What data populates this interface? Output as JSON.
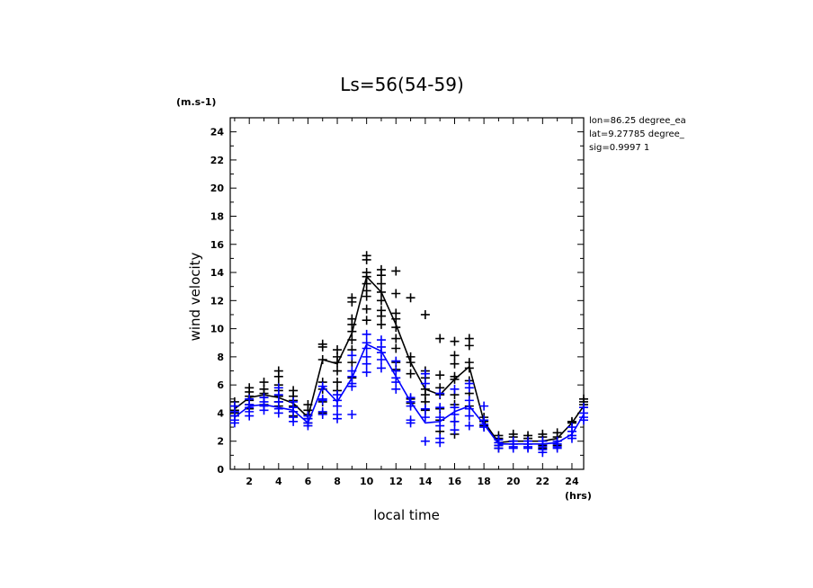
{
  "chart_data": {
    "type": "line",
    "title": "Ls=56(54-59)",
    "xlabel": "local time",
    "ylabel": "wind velocity",
    "x_unit": "(hrs)",
    "y_unit": "(m.s-1)",
    "xlim": [
      0.7,
      24.8
    ],
    "ylim": [
      0,
      25
    ],
    "x_ticks": [
      2,
      4,
      6,
      8,
      10,
      12,
      14,
      16,
      18,
      20,
      22,
      24
    ],
    "y_ticks": [
      0,
      2,
      4,
      6,
      8,
      10,
      12,
      14,
      16,
      18,
      20,
      22,
      24
    ],
    "annotations": [
      "lon=86.25 degree_ea",
      "lat=9.27785 degree_",
      "sig=0.9997 1"
    ],
    "x": [
      1,
      2,
      3,
      4,
      5,
      6,
      7,
      8,
      9,
      10,
      11,
      12,
      13,
      14,
      15,
      16,
      17,
      18,
      19,
      20,
      21,
      22,
      23,
      24,
      24.8
    ],
    "series": [
      {
        "color": "#000000",
        "mean": [
          4.3,
          5.1,
          5.3,
          5.1,
          4.7,
          3.7,
          7.8,
          7.5,
          9.7,
          13.7,
          12.6,
          10.3,
          7.6,
          5.7,
          5.3,
          6.4,
          7.3,
          3.4,
          1.9,
          2.0,
          2.0,
          2.0,
          2.2,
          3.3,
          4.5
        ],
        "scatter": [
          [
            4.8,
            4.5,
            4.2,
            4.0,
            3.8
          ],
          [
            5.8,
            5.5,
            5.2,
            4.9,
            4.6,
            4.3
          ],
          [
            6.2,
            5.7,
            5.4,
            5.1,
            4.6
          ],
          [
            7.0,
            6.6,
            6.0,
            5.6,
            5.2,
            4.8,
            4.5
          ],
          [
            5.6,
            5.2,
            4.9,
            4.5,
            4.1,
            3.8
          ],
          [
            4.6,
            4.2,
            3.9,
            3.6,
            3.3
          ],
          [
            8.9,
            8.7,
            7.8,
            6.2,
            5.7,
            4.8,
            4.0
          ],
          [
            8.5,
            8.0,
            7.6,
            7.0,
            6.2,
            5.6
          ],
          [
            12.2,
            11.9,
            10.7,
            10.3,
            9.8,
            9.2,
            8.5,
            7.6,
            6.5
          ],
          [
            15.2,
            14.9,
            14.0,
            13.7,
            13.2,
            12.7,
            12.3,
            11.4,
            10.6
          ],
          [
            14.2,
            13.8,
            13.2,
            12.6,
            12.0,
            11.3,
            10.9,
            10.3
          ],
          [
            14.1,
            12.5,
            11.1,
            10.7,
            10.1,
            9.3,
            8.6,
            7.6,
            7.1
          ],
          [
            12.2,
            8.0,
            7.6,
            6.8,
            5.0,
            4.7
          ],
          [
            11.0,
            7.0,
            6.5,
            5.7,
            5.3,
            4.8,
            4.2
          ],
          [
            9.3,
            6.7,
            5.8,
            5.3,
            4.3,
            3.5,
            2.7
          ],
          [
            9.1,
            8.1,
            7.5,
            6.6,
            6.4,
            5.3,
            4.6,
            3.4,
            2.5
          ],
          [
            9.3,
            8.8,
            7.6,
            7.2,
            6.3,
            5.4,
            4.5
          ],
          [
            3.7,
            3.4,
            3.1
          ],
          [
            2.4,
            2.2,
            1.9,
            1.7,
            1.5
          ],
          [
            2.5,
            2.3,
            2.0,
            1.8
          ],
          [
            2.4,
            2.2,
            2.0,
            1.8
          ],
          [
            2.5,
            2.3,
            2.0,
            1.7,
            1.5
          ],
          [
            2.6,
            2.3,
            2.0,
            1.7
          ],
          [
            3.4,
            3.3
          ],
          [
            5.0,
            4.8,
            4.6,
            4.4
          ]
        ]
      },
      {
        "color": "#0000ff",
        "mean": [
          3.7,
          4.5,
          4.6,
          4.4,
          4.2,
          3.3,
          5.9,
          4.8,
          6.5,
          8.9,
          8.4,
          6.6,
          4.8,
          3.3,
          3.4,
          4.1,
          4.5,
          3.2,
          1.8,
          1.8,
          1.8,
          1.8,
          1.9,
          2.5,
          3.9
        ],
        "scatter": [
          [
            4.5,
            4.1,
            3.8,
            3.5,
            3.3
          ],
          [
            5.0,
            4.6,
            4.4,
            4.1,
            3.8
          ],
          [
            5.1,
            4.8,
            4.5,
            4.2
          ],
          [
            5.8,
            5.3,
            4.8,
            4.3,
            4.0
          ],
          [
            4.8,
            4.4,
            4.1,
            3.7,
            3.4
          ],
          [
            3.8,
            3.6,
            3.3,
            3.1
          ],
          [
            5.9,
            5.0,
            4.9,
            4.1,
            3.9
          ],
          [
            5.3,
            4.9,
            4.5,
            3.9,
            3.6
          ],
          [
            8.1,
            7.0,
            6.6,
            6.1,
            5.9,
            3.9
          ],
          [
            9.6,
            9.0,
            8.6,
            8.0,
            7.5,
            6.9
          ],
          [
            9.2,
            8.7,
            8.3,
            7.8,
            7.2
          ],
          [
            7.7,
            7.0,
            6.5,
            6.2,
            5.7
          ],
          [
            5.1,
            4.8,
            4.5,
            3.5,
            3.3
          ],
          [
            6.8,
            6.1,
            4.3,
            3.7,
            2.0
          ],
          [
            5.4,
            4.4,
            3.7,
            3.1,
            2.2,
            1.9
          ],
          [
            5.7,
            4.4,
            3.9,
            3.4,
            2.8
          ],
          [
            6.1,
            5.8,
            4.9,
            4.3,
            3.8,
            3.1
          ],
          [
            4.5,
            3.5,
            3.2,
            3.0
          ],
          [
            2.1,
            1.9,
            1.7,
            1.5
          ],
          [
            2.0,
            1.8,
            1.6,
            1.5
          ],
          [
            2.0,
            1.8,
            1.6,
            1.5
          ],
          [
            2.0,
            1.8,
            1.6,
            1.4,
            1.2
          ],
          [
            2.0,
            1.8,
            1.6,
            1.5
          ],
          [
            3.0,
            2.7,
            2.4,
            2.2
          ],
          [
            4.4,
            4.0,
            3.7,
            3.5
          ]
        ]
      }
    ]
  }
}
